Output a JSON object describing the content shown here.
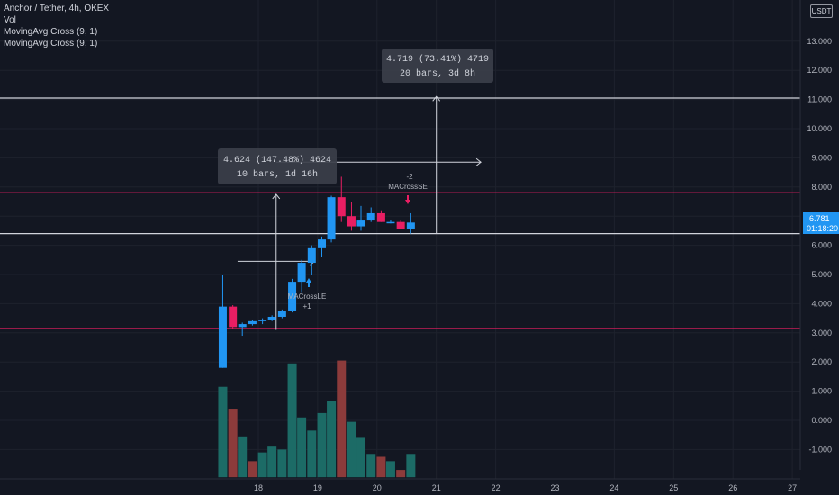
{
  "header": {
    "symbol_title": "Anchor / Tether, 4h, OKEX",
    "indicators": [
      "Vol",
      "MovingAvg Cross (9, 1)",
      "MovingAvg Cross (9, 1)"
    ],
    "currency_badge": "USDT"
  },
  "price_axis": {
    "ticks": [
      "13.000",
      "12.000",
      "11.000",
      "10.000",
      "9.000",
      "8.000",
      "7.000",
      "6.000",
      "5.000",
      "4.000",
      "3.000",
      "2.000",
      "1.000",
      "0.000",
      "-1.000"
    ],
    "current_price": "6.781",
    "countdown": "01:18:20"
  },
  "time_axis": {
    "ticks": [
      "18",
      "19",
      "20",
      "21",
      "22",
      "23",
      "24",
      "25",
      "26",
      "27"
    ]
  },
  "measurements": [
    {
      "line1": "4.624 (147.48%) 4624",
      "line2": "10 bars, 1d 16h"
    },
    {
      "line1": "4.719 (73.41%) 4719",
      "line2": "20 bars, 3d 8h"
    }
  ],
  "signals": {
    "long_label": "MACrossLE",
    "long_qty": "+1",
    "short_label": "MACrossSE",
    "short_qty": "-2"
  },
  "colors": {
    "up": "#2196f3",
    "down": "#e91e63",
    "vol_up": "#1c6b66",
    "vol_down": "#8c3b3b",
    "hline": "#e91e63"
  },
  "chart_data": {
    "type": "candlestick",
    "ylim": [
      -1.7,
      14.2
    ],
    "xlim": [
      17.25,
      27.1
    ],
    "candles": [
      {
        "t": 17.4,
        "o": 1.8,
        "h": 5.0,
        "l": 1.8,
        "c": 3.9
      },
      {
        "t": 17.57,
        "o": 3.9,
        "h": 3.95,
        "l": 3.15,
        "c": 3.2
      },
      {
        "t": 17.73,
        "o": 3.2,
        "h": 3.35,
        "l": 2.9,
        "c": 3.3
      },
      {
        "t": 17.9,
        "o": 3.3,
        "h": 3.45,
        "l": 3.25,
        "c": 3.4
      },
      {
        "t": 18.07,
        "o": 3.4,
        "h": 3.5,
        "l": 3.3,
        "c": 3.45
      },
      {
        "t": 18.23,
        "o": 3.45,
        "h": 3.6,
        "l": 3.4,
        "c": 3.55
      },
      {
        "t": 18.4,
        "o": 3.55,
        "h": 3.8,
        "l": 3.5,
        "c": 3.75
      },
      {
        "t": 18.57,
        "o": 3.75,
        "h": 4.85,
        "l": 3.7,
        "c": 4.75
      },
      {
        "t": 18.73,
        "o": 4.75,
        "h": 5.5,
        "l": 4.4,
        "c": 5.4
      },
      {
        "t": 18.9,
        "o": 5.4,
        "h": 6.0,
        "l": 5.0,
        "c": 5.9
      },
      {
        "t": 19.07,
        "o": 5.9,
        "h": 6.3,
        "l": 5.6,
        "c": 6.2
      },
      {
        "t": 19.23,
        "o": 6.2,
        "h": 7.7,
        "l": 6.1,
        "c": 7.65
      },
      {
        "t": 19.4,
        "o": 7.65,
        "h": 8.35,
        "l": 6.8,
        "c": 7.0
      },
      {
        "t": 19.57,
        "o": 7.0,
        "h": 7.5,
        "l": 6.5,
        "c": 6.65
      },
      {
        "t": 19.73,
        "o": 6.65,
        "h": 7.35,
        "l": 6.5,
        "c": 6.85
      },
      {
        "t": 19.9,
        "o": 6.85,
        "h": 7.3,
        "l": 6.8,
        "c": 7.1
      },
      {
        "t": 20.07,
        "o": 7.1,
        "h": 7.2,
        "l": 6.8,
        "c": 6.8
      },
      {
        "t": 20.23,
        "o": 6.8,
        "h": 6.85,
        "l": 6.75,
        "c": 6.8
      },
      {
        "t": 20.4,
        "o": 6.8,
        "h": 6.85,
        "l": 6.55,
        "c": 6.55
      },
      {
        "t": 20.57,
        "o": 6.55,
        "h": 7.1,
        "l": 6.4,
        "c": 6.78
      }
    ],
    "volume": [
      {
        "t": 17.4,
        "v": 1.15,
        "up": true
      },
      {
        "t": 17.57,
        "v": 0.4,
        "up": false
      },
      {
        "t": 17.73,
        "v": -0.55,
        "up": true
      },
      {
        "t": 17.9,
        "v": -1.4,
        "up": false
      },
      {
        "t": 18.07,
        "v": -1.1,
        "up": true
      },
      {
        "t": 18.23,
        "v": -0.9,
        "up": true
      },
      {
        "t": 18.4,
        "v": -1.0,
        "up": true
      },
      {
        "t": 18.57,
        "v": 1.95,
        "up": true
      },
      {
        "t": 18.73,
        "v": 0.1,
        "up": true
      },
      {
        "t": 18.9,
        "v": -0.35,
        "up": true
      },
      {
        "t": 19.07,
        "v": 0.25,
        "up": true
      },
      {
        "t": 19.23,
        "v": 0.65,
        "up": true
      },
      {
        "t": 19.4,
        "v": 2.05,
        "up": false
      },
      {
        "t": 19.57,
        "v": -0.05,
        "up": true
      },
      {
        "t": 19.73,
        "v": -0.6,
        "up": true
      },
      {
        "t": 19.9,
        "v": -1.15,
        "up": true
      },
      {
        "t": 20.07,
        "v": -1.25,
        "up": false
      },
      {
        "t": 20.23,
        "v": -1.4,
        "up": true
      },
      {
        "t": 20.4,
        "v": -1.7,
        "up": false
      },
      {
        "t": 20.57,
        "v": -1.15,
        "up": true
      }
    ],
    "volume_base": -1.95,
    "hlines": [
      {
        "y": 11.05,
        "color": "#d1d4dc"
      },
      {
        "y": 7.8,
        "color": "#e91e63"
      },
      {
        "y": 6.4,
        "color": "#d1d4dc"
      },
      {
        "y": 3.15,
        "color": "#e91e63"
      }
    ],
    "measure_arrows": [
      {
        "x_start": 18.3,
        "x_end": 21.75,
        "y_base": 3.1,
        "y_top": 7.75,
        "x_vert": 18.3,
        "y_horiz": 8.85
      },
      {
        "x_start": 21.0,
        "x_end": 21.0,
        "y_base": 6.4,
        "y_top": 11.1,
        "x_vert": 21.0,
        "y_horiz": 8.85
      }
    ],
    "entry_arrow": {
      "x_start": 17.65,
      "x_end": 18.95,
      "y": 5.45
    }
  }
}
